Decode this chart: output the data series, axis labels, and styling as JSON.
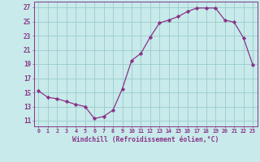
{
  "x": [
    0,
    1,
    2,
    3,
    4,
    5,
    6,
    7,
    8,
    9,
    10,
    11,
    12,
    13,
    14,
    15,
    16,
    17,
    18,
    19,
    20,
    21,
    22,
    23
  ],
  "y": [
    15.2,
    14.3,
    14.1,
    13.7,
    13.3,
    13.0,
    11.3,
    11.6,
    12.5,
    15.5,
    19.5,
    20.5,
    22.8,
    24.8,
    25.2,
    25.7,
    26.4,
    26.9,
    26.9,
    26.9,
    25.2,
    24.9,
    22.7,
    18.9
  ],
  "line_color": "#883388",
  "marker": "D",
  "marker_size": 2.2,
  "bg_color": "#c8eaea",
  "grid_color": "#99cccc",
  "xlabel": "Windchill (Refroidissement éolien,°C)",
  "ylabel_ticks": [
    11,
    13,
    15,
    17,
    19,
    21,
    23,
    25,
    27
  ],
  "ylim": [
    10.2,
    27.8
  ],
  "xlim": [
    -0.5,
    23.5
  ],
  "xtick_labels": [
    "0",
    "1",
    "2",
    "3",
    "4",
    "5",
    "6",
    "7",
    "8",
    "9",
    "10",
    "11",
    "12",
    "13",
    "14",
    "15",
    "16",
    "17",
    "18",
    "19",
    "20",
    "21",
    "22",
    "23"
  ],
  "font_color": "#883388"
}
